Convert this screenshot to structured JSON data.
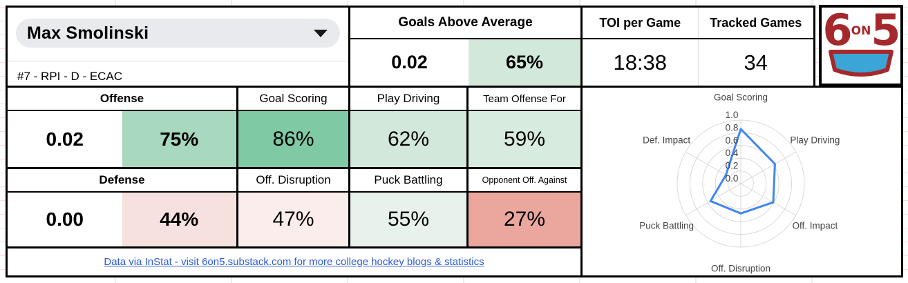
{
  "player": {
    "name": "Max Smolinski",
    "details": "#7 - RPI - D - ECAC"
  },
  "goals_above_average": {
    "label": "Goals Above Average",
    "value": "0.02",
    "percentile": "65%",
    "percentile_bg": "#d2e8da"
  },
  "toi": {
    "label": "TOI per Game",
    "value": "18:38"
  },
  "tracked_games": {
    "label": "Tracked Games",
    "value": "34"
  },
  "logo": {
    "six": "6",
    "on": "on",
    "five": "5",
    "red": "#a5292c",
    "blue": "#3aa5d6"
  },
  "offense": {
    "label": "Offense",
    "value": "0.02",
    "percentile": "75%",
    "percentile_bg": "#a8d8bd",
    "stats": [
      {
        "label": "Goal Scoring",
        "value": "86%",
        "bg": "#7fc9a4"
      },
      {
        "label": "Play Driving",
        "value": "62%",
        "bg": "#d1e8da"
      },
      {
        "label": "Team Offense For",
        "value": "59%",
        "bg": "#d7ebdf"
      }
    ]
  },
  "defense": {
    "label": "Defense",
    "value": "0.00",
    "percentile": "44%",
    "percentile_bg": "#f7e1de",
    "stats": [
      {
        "label": "Off. Disruption",
        "value": "47%",
        "bg": "#fbedec"
      },
      {
        "label": "Puck Battling",
        "value": "55%",
        "bg": "#e8f2ec"
      },
      {
        "label": "Opponent Off. Against",
        "value": "27%",
        "bg": "#eba79e"
      }
    ]
  },
  "footer": {
    "link_text": "Data via InStat - visit 6on5.substack.com for more college hockey blogs & statistics"
  },
  "chart_data": {
    "type": "radar",
    "categories": [
      "Goal Scoring",
      "Play Driving",
      "Off. Impact",
      "Off. Disruption",
      "Puck Battling",
      "Def. Impact"
    ],
    "values": [
      0.86,
      0.62,
      0.59,
      0.47,
      0.55,
      0.27
    ],
    "ticks": [
      0.0,
      0.2,
      0.4,
      0.6,
      0.8,
      1.0
    ],
    "rlim": [
      0,
      1
    ],
    "grid": true,
    "legend": "none",
    "line_color": "#4285f4",
    "grid_color": "#d9d9d9",
    "label_color": "#424242"
  }
}
